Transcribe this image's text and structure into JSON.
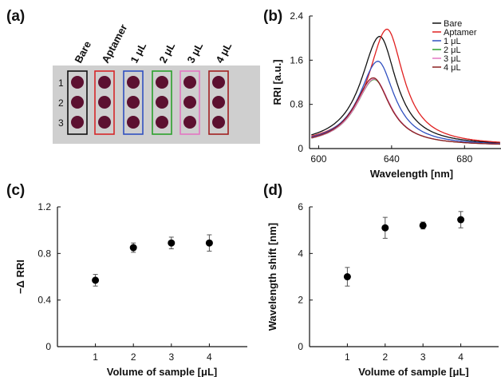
{
  "panels": {
    "a": "(a)",
    "b": "(b)",
    "c": "(c)",
    "d": "(d)"
  },
  "chip": {
    "columns": [
      {
        "label": "Bare",
        "border": "#111111"
      },
      {
        "label": "Aptamer",
        "border": "#d62728"
      },
      {
        "label": "1 μL",
        "border": "#3050c0"
      },
      {
        "label": "2 μL",
        "border": "#2ca02c"
      },
      {
        "label": "3 μL",
        "border": "#e377c2"
      },
      {
        "label": "4 μL",
        "border": "#a02020"
      }
    ],
    "rows": [
      "1",
      "2",
      "3"
    ],
    "background": "#cfcfcf",
    "dot_color": "#5c1030"
  },
  "chart_data": [
    {
      "id": "b",
      "type": "line",
      "xlabel": "Wavelength [nm]",
      "ylabel": "RRI [a.u.]",
      "xlim": [
        595,
        700
      ],
      "ylim": [
        0,
        2.4
      ],
      "xticks": [
        600,
        640,
        680
      ],
      "yticks": [
        0,
        0.8,
        1.6,
        2.4
      ],
      "legend_position": "top-right",
      "series": [
        {
          "name": "Bare",
          "color": "#111111",
          "peak_x": 633.5,
          "peak_y": 2.03
        },
        {
          "name": "Aptamer",
          "color": "#e02020",
          "peak_x": 637.5,
          "peak_y": 2.16
        },
        {
          "name": "1 μL",
          "color": "#3050c0",
          "peak_x": 632.5,
          "peak_y": 1.58
        },
        {
          "name": "2 μL",
          "color": "#2ca02c",
          "peak_x": 630.5,
          "peak_y": 1.25
        },
        {
          "name": "3 μL",
          "color": "#e377c2",
          "peak_x": 630.5,
          "peak_y": 1.26
        },
        {
          "name": "4 μL",
          "color": "#8b2020",
          "peak_x": 630.0,
          "peak_y": 1.28
        }
      ]
    },
    {
      "id": "c",
      "type": "scatter",
      "xlabel": "Volume of sample [μL]",
      "ylabel": "−Δ RRI",
      "xlim": [
        0,
        5
      ],
      "ylim": [
        0,
        1.2
      ],
      "xticks": [
        1,
        2,
        3,
        4
      ],
      "yticks": [
        0,
        0.4,
        0.8,
        1.2
      ],
      "ytick_labels": [
        "0",
        "0.4",
        "0.8",
        "1.2"
      ],
      "x": [
        1,
        2,
        3,
        4
      ],
      "y": [
        0.57,
        0.85,
        0.89,
        0.89
      ],
      "err": [
        0.05,
        0.04,
        0.05,
        0.07
      ]
    },
    {
      "id": "d",
      "type": "scatter",
      "xlabel": "Volume of sample [μL]",
      "ylabel": "Wavelength shift [nm]",
      "xlim": [
        0,
        5
      ],
      "ylim": [
        0,
        6
      ],
      "xticks": [
        1,
        2,
        3,
        4
      ],
      "yticks": [
        0,
        2,
        4,
        6
      ],
      "ytick_labels": [
        "0",
        "2",
        "4",
        "6"
      ],
      "x": [
        1,
        2,
        3,
        4
      ],
      "y": [
        3.0,
        5.1,
        5.2,
        5.45
      ],
      "err": [
        0.4,
        0.45,
        0.15,
        0.35
      ]
    }
  ]
}
